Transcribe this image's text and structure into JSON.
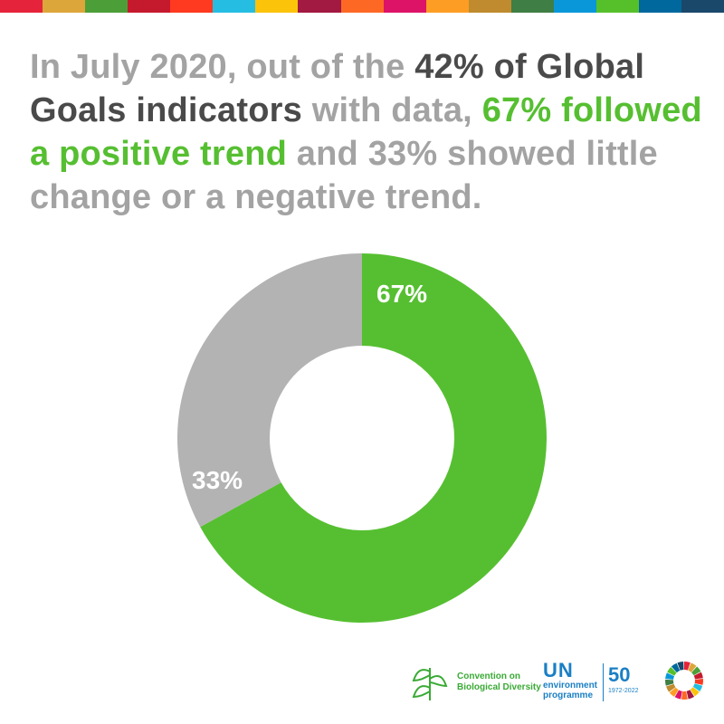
{
  "top_bar_colors": [
    "#e5243b",
    "#dda63a",
    "#4c9f38",
    "#c5192d",
    "#ff3a21",
    "#26bde2",
    "#fcc30b",
    "#a21942",
    "#fd6925",
    "#dd1367",
    "#fd9d24",
    "#bf8b2e",
    "#3f7e44",
    "#0a97d9",
    "#56c02b",
    "#00689d",
    "#19486a"
  ],
  "headline": {
    "part1": "In July 2020, out of the ",
    "part2": "42% of Global Goals indicators",
    "part3": " with data, ",
    "part4": "67% followed a positive trend",
    "part5": " and 33% showed little change or a negative trend."
  },
  "chart_data": {
    "type": "pie",
    "donut": true,
    "slices": [
      {
        "label": "67%",
        "value": 67,
        "color": "#56bf31"
      },
      {
        "label": "33%",
        "value": 33,
        "color": "#b3b3b3"
      }
    ]
  },
  "footer": {
    "cbd_text": "Convention on\nBiological Diversity",
    "un_text": "UN",
    "un_sub": "environment\nprogramme",
    "fifty": "50",
    "fifty_years": "1972-2022"
  }
}
